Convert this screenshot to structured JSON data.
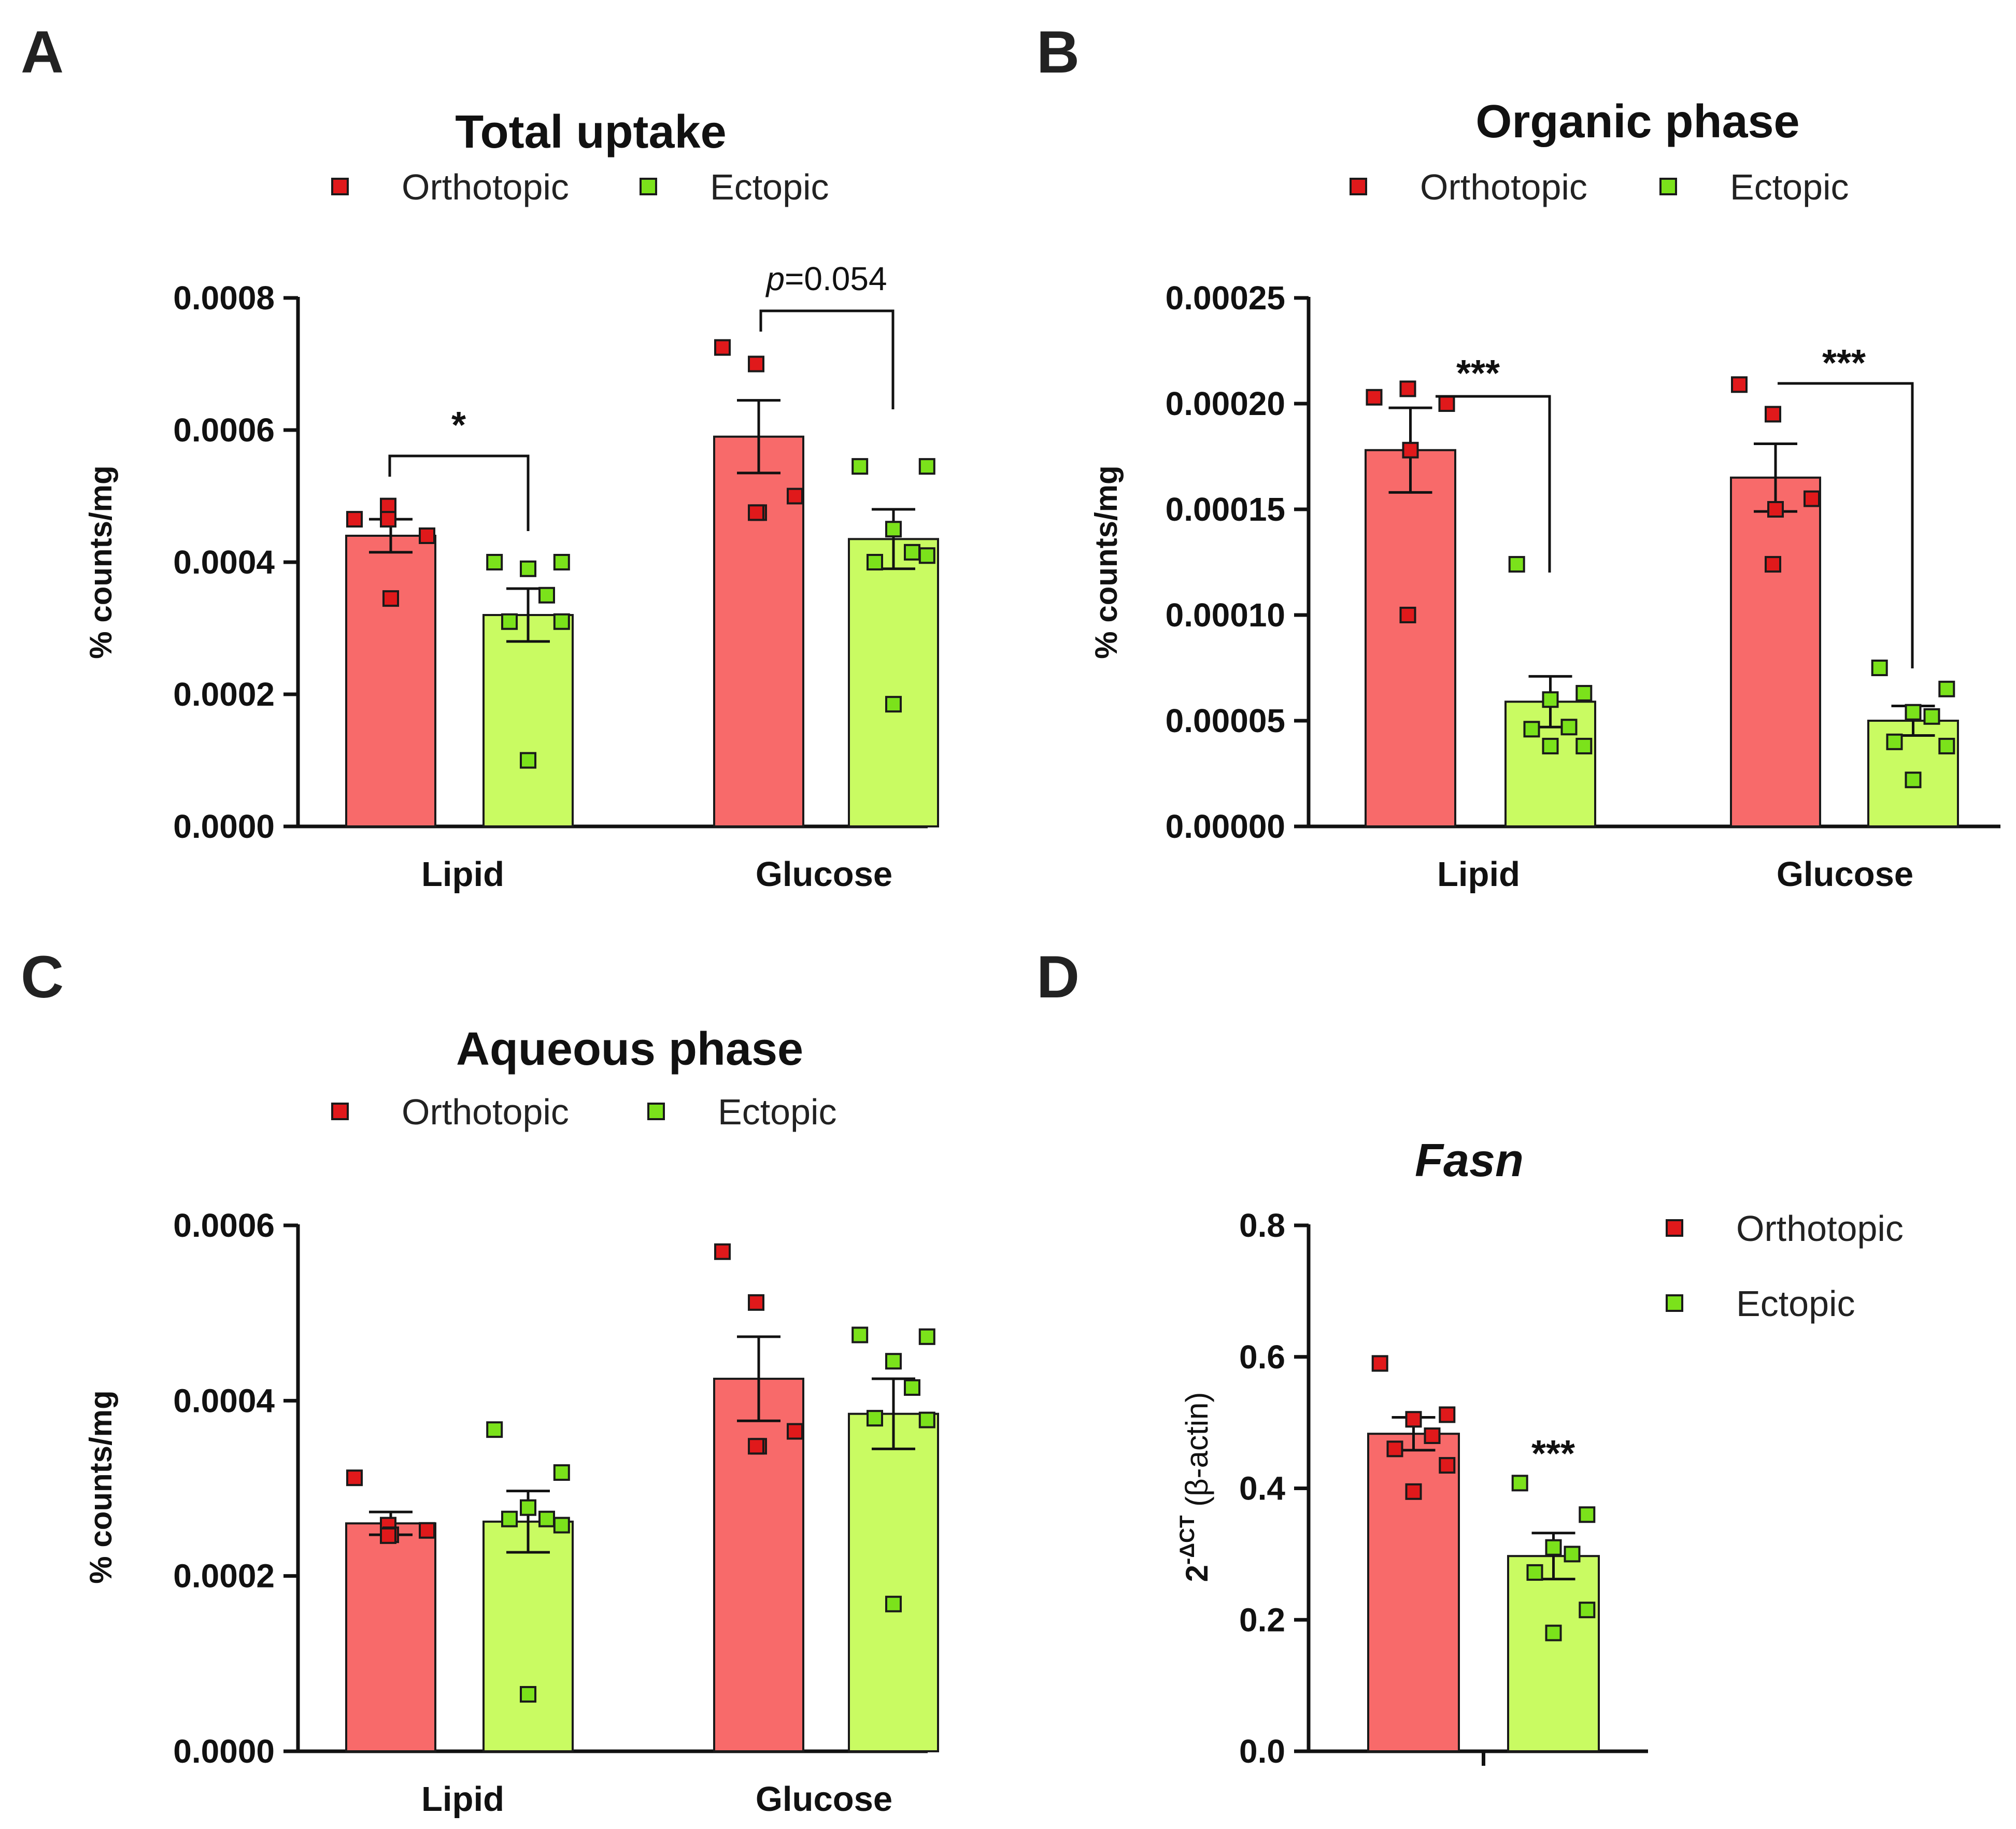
{
  "colors": {
    "orthotopic_bar": "#f86a6a",
    "ectopic_bar": "#c9fb62",
    "orthotopic_point": "#e0191b",
    "ectopic_point": "#7be21b",
    "axis": "#111111"
  },
  "chart_data": [
    {
      "panel": "A",
      "type": "bar",
      "title": "Total uptake",
      "ylabel": "% counts/mg",
      "ylim": [
        0,
        0.0008
      ],
      "yticks": [
        "0.0000",
        "0.0002",
        "0.0004",
        "0.0006",
        "0.0008"
      ],
      "categories": [
        "Lipid",
        "Glucose"
      ],
      "legend": [
        "Orthotopic",
        "Ectopic"
      ],
      "series": [
        {
          "name": "Orthotopic",
          "values": [
            0.00044,
            0.00059
          ],
          "sem": [
            2.5e-05,
            5.5e-05
          ],
          "points": [
            [
              0.000465,
              0.000485,
              0.00044,
              0.000345,
              0.000465
            ],
            [
              0.000725,
              0.0007,
              0.0005,
              0.000475,
              0.000475
            ]
          ]
        },
        {
          "name": "Ectopic",
          "values": [
            0.00032,
            0.000435
          ],
          "sem": [
            4e-05,
            4.5e-05
          ],
          "points": [
            [
              0.0004,
              0.0004,
              0.00039,
              0.00035,
              0.00031,
              0.00031,
              0.0001
            ],
            [
              0.000545,
              0.000545,
              0.00045,
              0.000415,
              0.0004,
              0.00041,
              0.000185
            ]
          ]
        }
      ],
      "annotations": [
        {
          "category": "Lipid",
          "text": "*"
        },
        {
          "category": "Glucose",
          "prefix": "p",
          "text": "=0.054"
        }
      ]
    },
    {
      "panel": "B",
      "type": "bar",
      "title": "Organic phase",
      "ylabel": "% counts/mg",
      "ylim": [
        0,
        0.00025
      ],
      "yticks": [
        "0.00000",
        "0.00005",
        "0.00010",
        "0.00015",
        "0.00020",
        "0.00025"
      ],
      "categories": [
        "Lipid",
        "Glucose"
      ],
      "legend": [
        "Orthotopic",
        "Ectopic"
      ],
      "series": [
        {
          "name": "Orthotopic",
          "values": [
            0.000178,
            0.000165
          ],
          "sem": [
            2e-05,
            1.6e-05
          ],
          "points": [
            [
              0.000203,
              0.000207,
              0.0002,
              0.000178,
              0.0001
            ],
            [
              0.000209,
              0.000195,
              0.000155,
              0.00015,
              0.000124
            ]
          ]
        },
        {
          "name": "Ectopic",
          "values": [
            5.9e-05,
            5e-05
          ],
          "sem": [
            1.2e-05,
            7e-06
          ],
          "points": [
            [
              0.000124,
              6.3e-05,
              6e-05,
              4.7e-05,
              4.6e-05,
              3.8e-05,
              3.8e-05
            ],
            [
              7.5e-05,
              6.5e-05,
              5.4e-05,
              5.2e-05,
              4e-05,
              3.8e-05,
              2.2e-05
            ]
          ]
        }
      ],
      "annotations": [
        {
          "category": "Lipid",
          "text": "***"
        },
        {
          "category": "Glucose",
          "text": "***"
        }
      ]
    },
    {
      "panel": "C",
      "type": "bar",
      "title": "Aqueous phase",
      "ylabel": "% counts/mg",
      "ylim": [
        0,
        0.0006
      ],
      "yticks": [
        "0.0000",
        "0.0002",
        "0.0004",
        "0.0006"
      ],
      "categories": [
        "Lipid",
        "Glucose"
      ],
      "legend": [
        "Orthotopic",
        "Ectopic"
      ],
      "series": [
        {
          "name": "Orthotopic",
          "values": [
            0.00026,
            0.000425
          ],
          "sem": [
            1.3e-05,
            4.8e-05
          ],
          "points": [
            [
              0.000312,
              0.000258,
              0.000252,
              0.000247,
              0.000246
            ],
            [
              0.00057,
              0.000512,
              0.000365,
              0.000348,
              0.000348
            ]
          ]
        },
        {
          "name": "Ectopic",
          "values": [
            0.000262,
            0.000385
          ],
          "sem": [
            3.5e-05,
            4e-05
          ],
          "points": [
            [
              0.000367,
              0.000318,
              0.000278,
              0.000265,
              0.000265,
              0.000258,
              6.5e-05
            ],
            [
              0.000475,
              0.000473,
              0.000445,
              0.000415,
              0.00038,
              0.000378,
              0.000168
            ]
          ]
        }
      ],
      "annotations": []
    },
    {
      "panel": "D",
      "type": "bar",
      "title": "Fasn",
      "ylabel_base": "2",
      "ylabel_exp": "-ΔCT",
      "ylabel_rest": " (β-actin)",
      "ylim": [
        0,
        0.8
      ],
      "yticks": [
        "0.0",
        "0.2",
        "0.4",
        "0.6",
        "0.8"
      ],
      "categories": [
        ""
      ],
      "legend": [
        "Orthotopic",
        "Ectopic"
      ],
      "series": [
        {
          "name": "Orthotopic",
          "values": [
            0.483
          ],
          "sem": [
            0.025
          ],
          "points": [
            [
              0.59,
              0.512,
              0.505,
              0.48,
              0.46,
              0.435,
              0.395
            ]
          ]
        },
        {
          "name": "Ectopic",
          "values": [
            0.297
          ],
          "sem": [
            0.035
          ],
          "points": [
            [
              0.408,
              0.36,
              0.31,
              0.3,
              0.272,
              0.215,
              0.18
            ]
          ]
        }
      ],
      "annotations": [
        {
          "category": "Ectopic",
          "text": "***"
        }
      ]
    }
  ]
}
